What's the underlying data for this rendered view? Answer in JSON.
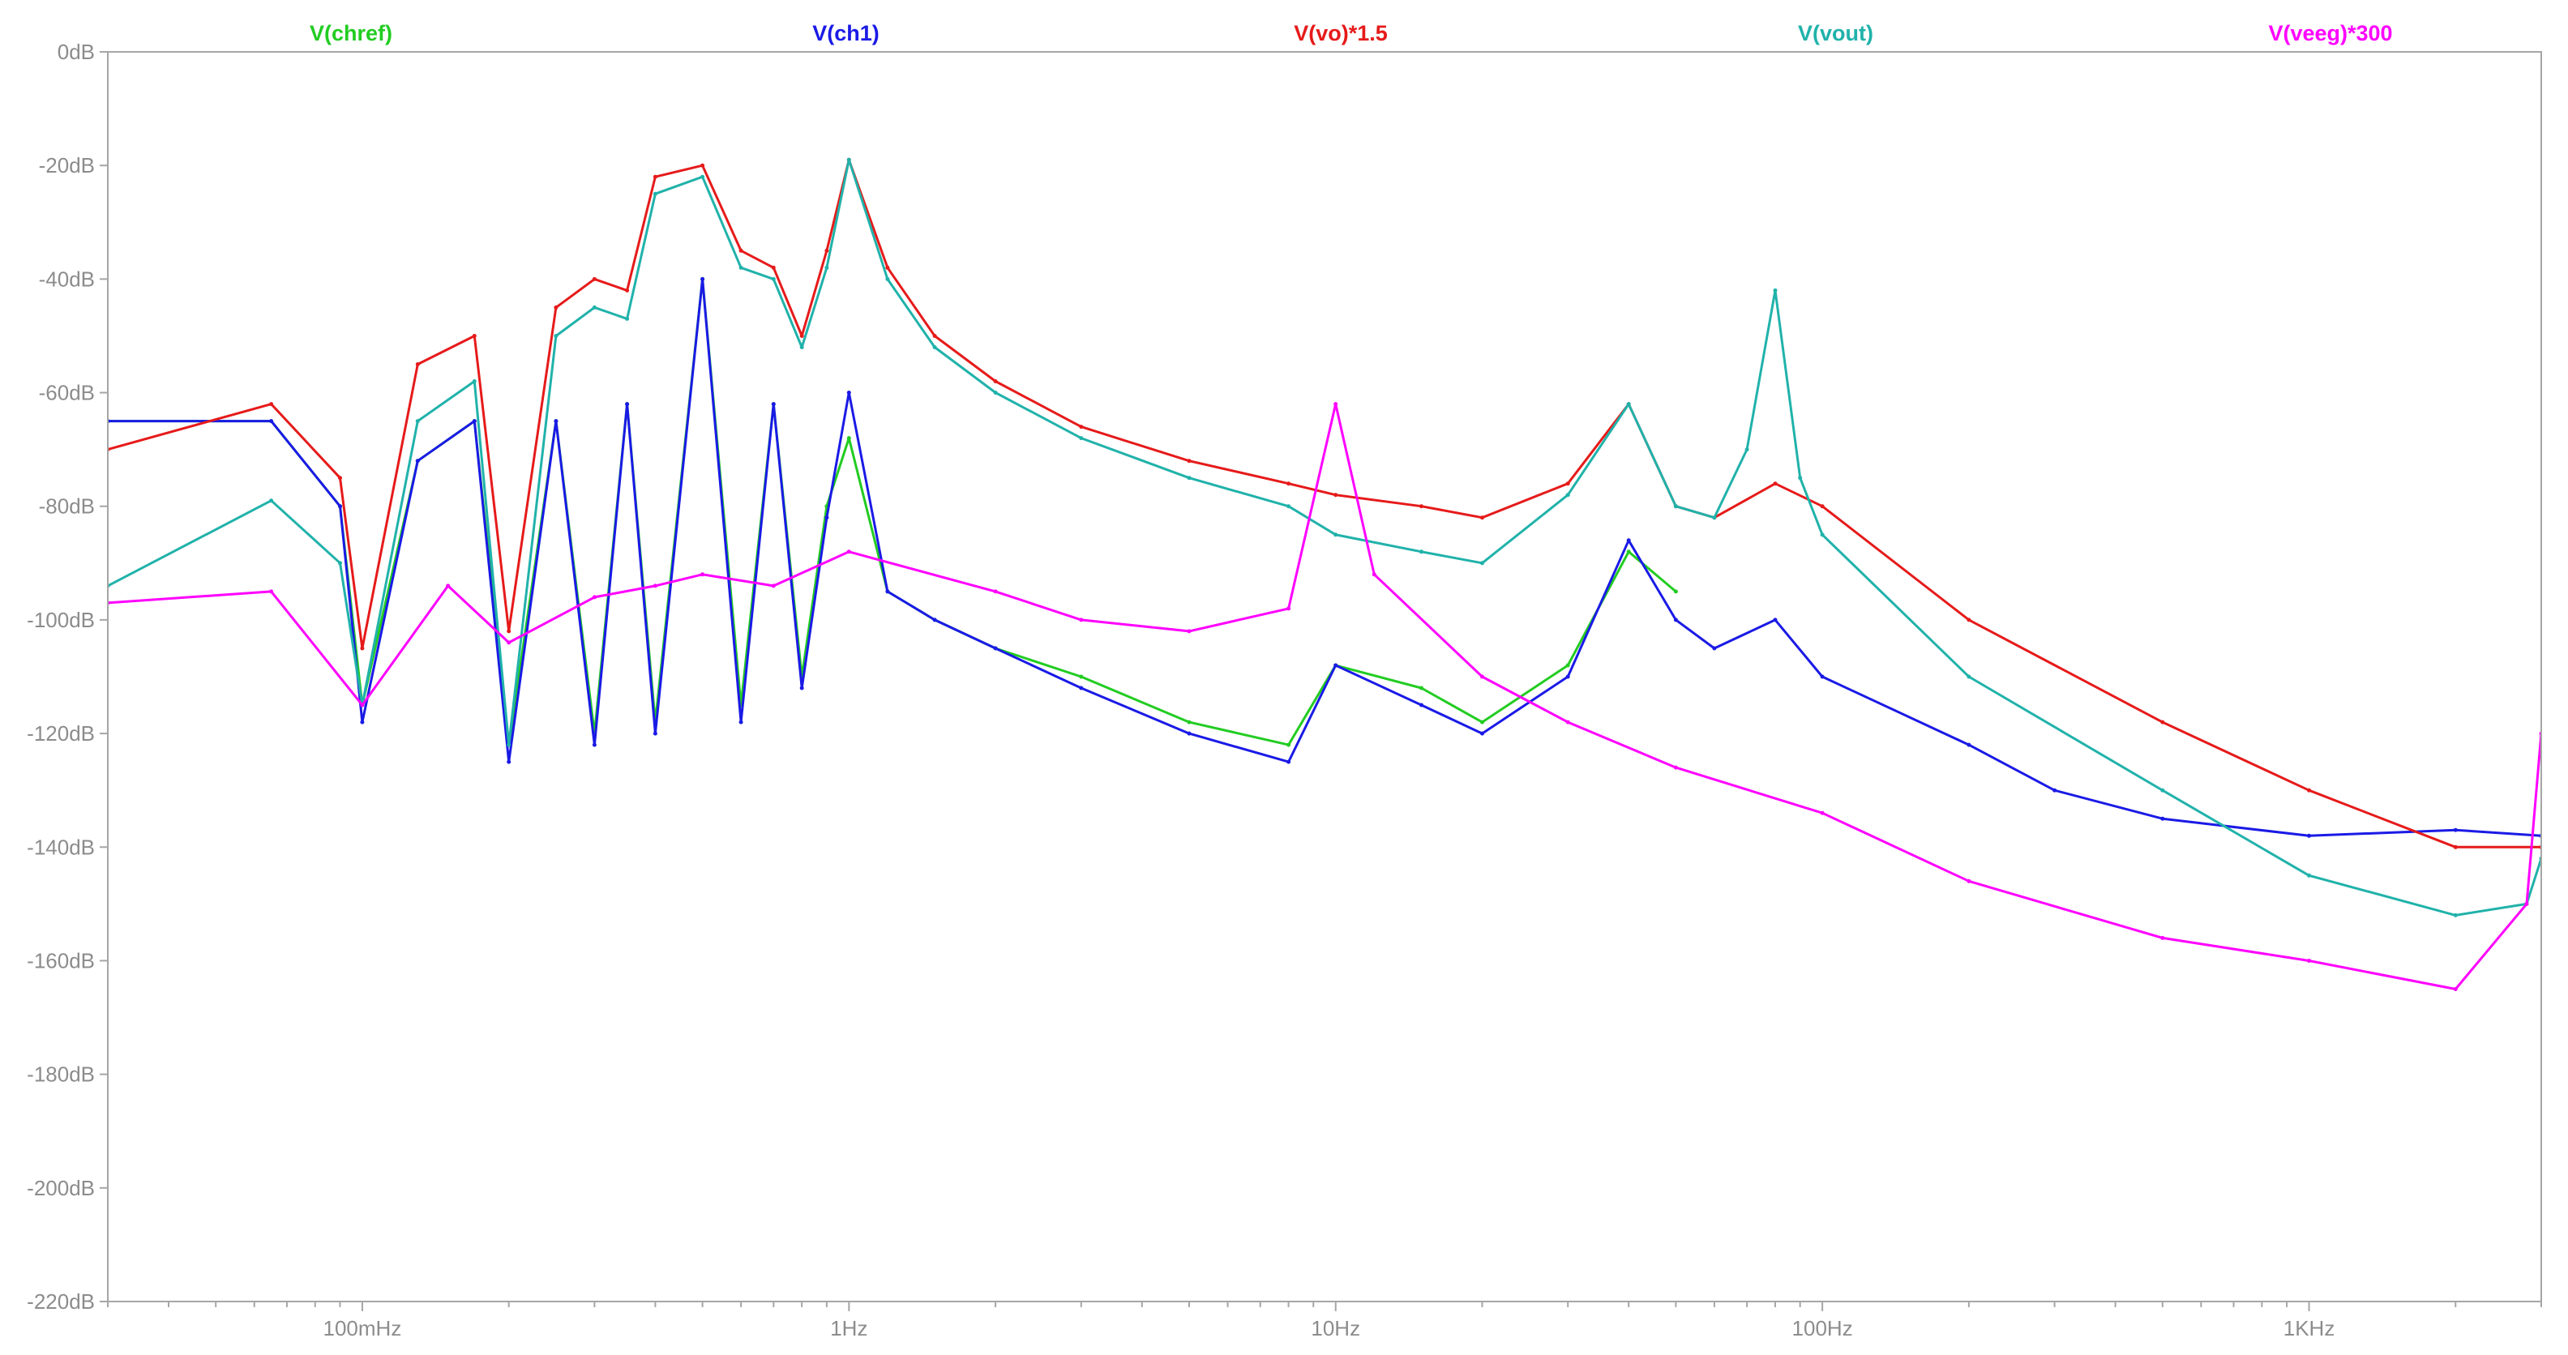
{
  "chart_data": {
    "type": "line",
    "title": "",
    "xlabel": "",
    "ylabel": "",
    "x_scale": "log",
    "x_unit": "Hz",
    "xlim": [
      0.03,
      3000
    ],
    "ylim": [
      -220,
      0
    ],
    "y_unit": "dB",
    "grid": false,
    "legend_placement": "top",
    "x_ticks": [
      {
        "value": 0.1,
        "label": "100mHz"
      },
      {
        "value": 1,
        "label": "1Hz"
      },
      {
        "value": 10,
        "label": "10Hz"
      },
      {
        "value": 100,
        "label": "100Hz"
      },
      {
        "value": 1000,
        "label": "1KHz"
      }
    ],
    "y_ticks": [
      {
        "value": 0,
        "label": "0dB"
      },
      {
        "value": -20,
        "label": "-20dB"
      },
      {
        "value": -40,
        "label": "-40dB"
      },
      {
        "value": -60,
        "label": "-60dB"
      },
      {
        "value": -80,
        "label": "-80dB"
      },
      {
        "value": -100,
        "label": "-100dB"
      },
      {
        "value": -120,
        "label": "-120dB"
      },
      {
        "value": -140,
        "label": "-140dB"
      },
      {
        "value": -160,
        "label": "-160dB"
      },
      {
        "value": -180,
        "label": "-180dB"
      },
      {
        "value": -200,
        "label": "-200dB"
      },
      {
        "value": -220,
        "label": "-220dB"
      }
    ],
    "series": [
      {
        "name": "V(chref)",
        "color": "#22cc22",
        "x": [
          0.03,
          0.065,
          0.09,
          0.1,
          0.13,
          0.17,
          0.2,
          0.25,
          0.3,
          0.35,
          0.4,
          0.5,
          0.6,
          0.7,
          0.8,
          0.9,
          1.0,
          1.2,
          1.5,
          2,
          3,
          5,
          8,
          10,
          15,
          20,
          30,
          40,
          50
        ],
        "values": [
          -65,
          -65,
          -80,
          -115,
          -72,
          -65,
          -122,
          -65,
          -120,
          -62,
          -118,
          -40,
          -115,
          -62,
          -110,
          -80,
          -68,
          -95,
          -100,
          -105,
          -110,
          -118,
          -122,
          -108,
          -112,
          -118,
          -108,
          -88,
          -95
        ]
      },
      {
        "name": "V(ch1)",
        "color": "#1a1ae6",
        "x": [
          0.03,
          0.065,
          0.09,
          0.1,
          0.13,
          0.17,
          0.2,
          0.25,
          0.3,
          0.35,
          0.4,
          0.5,
          0.6,
          0.7,
          0.8,
          0.9,
          1.0,
          1.2,
          1.5,
          2,
          3,
          5,
          8,
          10,
          15,
          20,
          30,
          40,
          50,
          60,
          80,
          100,
          200,
          300,
          500,
          1000,
          2000,
          3000
        ],
        "values": [
          -65,
          -65,
          -80,
          -118,
          -72,
          -65,
          -125,
          -65,
          -122,
          -62,
          -120,
          -40,
          -118,
          -62,
          -112,
          -82,
          -60,
          -95,
          -100,
          -105,
          -112,
          -120,
          -125,
          -108,
          -115,
          -120,
          -110,
          -86,
          -100,
          -105,
          -100,
          -110,
          -122,
          -130,
          -135,
          -138,
          -137,
          -138
        ]
      },
      {
        "name": "V(vo)*1.5",
        "color": "#e61a1a",
        "x": [
          0.03,
          0.065,
          0.09,
          0.1,
          0.13,
          0.17,
          0.2,
          0.25,
          0.3,
          0.35,
          0.4,
          0.5,
          0.6,
          0.7,
          0.8,
          0.9,
          1.0,
          1.2,
          1.5,
          2,
          3,
          5,
          8,
          10,
          15,
          20,
          30,
          40,
          50,
          60,
          80,
          100,
          200,
          500,
          1000,
          2000,
          3000
        ],
        "values": [
          -70,
          -62,
          -75,
          -105,
          -55,
          -50,
          -102,
          -45,
          -40,
          -42,
          -22,
          -20,
          -35,
          -38,
          -50,
          -35,
          -19,
          -38,
          -50,
          -58,
          -66,
          -72,
          -76,
          -78,
          -80,
          -82,
          -76,
          -62,
          -80,
          -82,
          -76,
          -80,
          -100,
          -118,
          -130,
          -140,
          -140
        ]
      },
      {
        "name": "V(vout)",
        "color": "#20b2aa",
        "x": [
          0.03,
          0.065,
          0.09,
          0.1,
          0.13,
          0.17,
          0.2,
          0.25,
          0.3,
          0.35,
          0.4,
          0.5,
          0.6,
          0.7,
          0.8,
          0.9,
          1.0,
          1.2,
          1.5,
          2,
          3,
          5,
          8,
          10,
          15,
          20,
          30,
          40,
          50,
          60,
          70,
          80,
          90,
          100,
          200,
          500,
          1000,
          2000,
          2800,
          3000
        ],
        "values": [
          -94,
          -79,
          -90,
          -115,
          -65,
          -58,
          -122,
          -50,
          -45,
          -47,
          -25,
          -22,
          -38,
          -40,
          -52,
          -38,
          -19,
          -40,
          -52,
          -60,
          -68,
          -75,
          -80,
          -85,
          -88,
          -90,
          -78,
          -62,
          -80,
          -82,
          -70,
          -42,
          -75,
          -85,
          -110,
          -130,
          -145,
          -152,
          -150,
          -142
        ]
      },
      {
        "name": "V(veeg)*300",
        "color": "#ff00ff",
        "x": [
          0.03,
          0.065,
          0.1,
          0.15,
          0.2,
          0.3,
          0.4,
          0.5,
          0.7,
          1,
          2,
          3,
          5,
          8,
          10,
          12,
          20,
          30,
          50,
          100,
          200,
          500,
          1000,
          2000,
          2800,
          3000
        ],
        "values": [
          -97,
          -95,
          -115,
          -94,
          -104,
          -96,
          -94,
          -92,
          -94,
          -88,
          -95,
          -100,
          -102,
          -98,
          -62,
          -92,
          -110,
          -118,
          -126,
          -134,
          -146,
          -156,
          -160,
          -165,
          -150,
          -120
        ]
      }
    ]
  }
}
